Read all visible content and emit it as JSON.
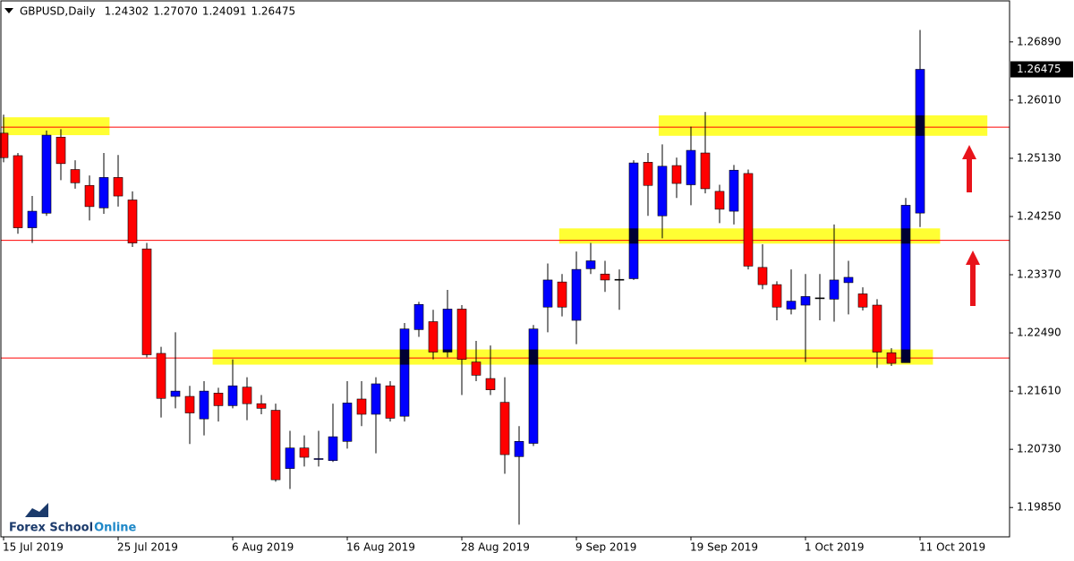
{
  "chart_data": {
    "type": "candlestick",
    "title": "GBPUSD,Daily",
    "header_values": [
      "1.24302",
      "1.27070",
      "1.24091",
      "1.26475"
    ],
    "categories": [
      "15 Jul 2019",
      null,
      null,
      null,
      null,
      null,
      null,
      null,
      "25 Jul 2019",
      null,
      null,
      null,
      null,
      null,
      null,
      null,
      "6 Aug 2019",
      null,
      null,
      null,
      null,
      null,
      null,
      null,
      "16 Aug 2019",
      null,
      null,
      null,
      null,
      null,
      null,
      null,
      "28 Aug 2019",
      null,
      null,
      null,
      null,
      null,
      null,
      null,
      "9 Sep 2019",
      null,
      null,
      null,
      null,
      null,
      null,
      null,
      "19 Sep 2019",
      null,
      null,
      null,
      null,
      null,
      null,
      null,
      "1 Oct 2019",
      null,
      null,
      null,
      null,
      null,
      null,
      null,
      "11 Oct 2019"
    ],
    "open": [
      1.2551,
      1.2517,
      1.2408,
      1.243,
      1.2545,
      1.2496,
      1.2472,
      1.2438,
      1.2484,
      1.245,
      1.2376,
      1.2218,
      1.2153,
      1.2153,
      1.2119,
      1.2158,
      1.2139,
      1.2167,
      1.2142,
      1.2132,
      1.2044,
      1.2075,
      1.2058,
      1.2056,
      1.2085,
      1.2149,
      1.2126,
      1.2169,
      1.2123,
      1.2254,
      1.2266,
      1.222,
      1.2285,
      1.2205,
      1.218,
      1.2144,
      1.2062,
      1.2082,
      1.2288,
      1.2326,
      1.2268,
      1.2346,
      1.2338,
      1.233,
      1.2331,
      1.2507,
      1.2426,
      1.2502,
      1.2473,
      1.2521,
      1.2463,
      1.2433,
      1.249,
      1.2348,
      1.2322,
      1.2285,
      1.2291,
      1.2302,
      1.23,
      1.2325,
      1.2308,
      1.2291,
      1.2219,
      1.2204,
      1.24302
    ],
    "high": [
      1.2579,
      1.2521,
      1.2456,
      1.2555,
      1.2557,
      1.251,
      1.2487,
      1.2521,
      1.2518,
      1.2463,
      1.2385,
      1.2228,
      1.225,
      1.2169,
      1.2176,
      1.2166,
      1.2209,
      1.2182,
      1.2155,
      1.2142,
      1.2101,
      1.2094,
      1.2101,
      1.2142,
      1.2176,
      1.2176,
      1.2182,
      1.2176,
      1.2264,
      1.2296,
      1.2284,
      1.2314,
      1.2291,
      1.2237,
      1.223,
      1.2182,
      1.2108,
      1.2261,
      1.2354,
      1.2338,
      1.2372,
      1.2385,
      1.2358,
      1.2345,
      1.251,
      1.2521,
      1.2534,
      1.2514,
      1.2561,
      1.2583,
      1.2473,
      1.2503,
      1.2496,
      1.2383,
      1.2327,
      1.2345,
      1.2338,
      1.2338,
      1.2413,
      1.2358,
      1.2318,
      1.23,
      1.2226,
      1.2453,
      1.2707
    ],
    "low": [
      1.2507,
      1.2399,
      1.2385,
      1.2426,
      1.248,
      1.2467,
      1.2419,
      1.2429,
      1.244,
      1.2379,
      1.2212,
      1.2121,
      1.2135,
      1.2081,
      1.2094,
      1.2115,
      1.2135,
      1.2117,
      1.2126,
      1.2024,
      1.2013,
      1.2047,
      1.2047,
      1.2054,
      1.2074,
      1.2108,
      1.2067,
      1.2115,
      1.2115,
      1.2243,
      1.2209,
      1.2212,
      1.2155,
      1.2176,
      1.2155,
      1.2036,
      1.1959,
      1.2078,
      1.225,
      1.2274,
      1.2232,
      1.2338,
      1.2311,
      1.2284,
      1.2329,
      1.2426,
      1.2392,
      1.2453,
      1.2442,
      1.246,
      1.2415,
      1.2413,
      1.2345,
      1.2315,
      1.2268,
      1.2277,
      1.2205,
      1.2268,
      1.2266,
      1.2277,
      1.2283,
      1.2196,
      1.2199,
      1.2204,
      1.24091
    ],
    "close": [
      1.2514,
      1.2408,
      1.2433,
      1.2548,
      1.2505,
      1.2476,
      1.244,
      1.2484,
      1.2456,
      1.2385,
      1.2216,
      1.215,
      1.2161,
      1.2128,
      1.2161,
      1.2139,
      1.2169,
      1.2142,
      1.2135,
      1.2027,
      1.2075,
      1.2061,
      1.2059,
      1.2092,
      1.2143,
      1.2126,
      1.2172,
      1.212,
      1.2255,
      1.2292,
      1.222,
      1.2285,
      1.2209,
      1.2185,
      1.2163,
      1.2065,
      1.2085,
      1.2255,
      1.2329,
      1.2288,
      1.2345,
      1.2358,
      1.2329,
      1.233,
      1.2506,
      1.2472,
      1.2501,
      1.2475,
      1.2525,
      1.2467,
      1.2436,
      1.2495,
      1.235,
      1.2322,
      1.2288,
      1.2297,
      1.2304,
      1.2302,
      1.2329,
      1.2333,
      1.2288,
      1.222,
      1.2203,
      1.2442,
      1.26475
    ],
    "up_color": "#0000ff",
    "down_color": "#ff0000",
    "ylim": [
      1.1942,
      1.2751
    ],
    "yticks": [
      {
        "value": 1.1985,
        "label": "1.19850"
      },
      {
        "value": 1.2073,
        "label": "1.20730"
      },
      {
        "value": 1.2161,
        "label": "1.21610"
      },
      {
        "value": 1.2249,
        "label": "1.22490"
      },
      {
        "value": 1.2337,
        "label": "1.23370"
      },
      {
        "value": 1.2425,
        "label": "1.24250"
      },
      {
        "value": 1.2513,
        "label": "1.25130"
      },
      {
        "value": 1.2601,
        "label": "1.26010"
      },
      {
        "value": 1.2689,
        "label": "1.26890"
      }
    ],
    "current_price": {
      "value": 1.26475,
      "label": "1.26475"
    },
    "levels": [
      1.256,
      1.2389,
      1.2211
    ],
    "level_color": "#ff0000",
    "zones": [
      {
        "top": 1.2575,
        "bottom": 1.2548,
        "start": -0.06,
        "end": 7.4
      },
      {
        "top": 1.2578,
        "bottom": 1.2547,
        "start": 45.75,
        "end": 68.7
      },
      {
        "top": 1.2407,
        "bottom": 1.2384,
        "start": 38.8,
        "end": 65.4
      },
      {
        "top": 1.2224,
        "bottom": 1.2201,
        "start": 14.6,
        "end": 64.9
      }
    ],
    "zone_color": "#ffff33",
    "logo": {
      "brand": "Forex School",
      "accent": "Online"
    }
  }
}
